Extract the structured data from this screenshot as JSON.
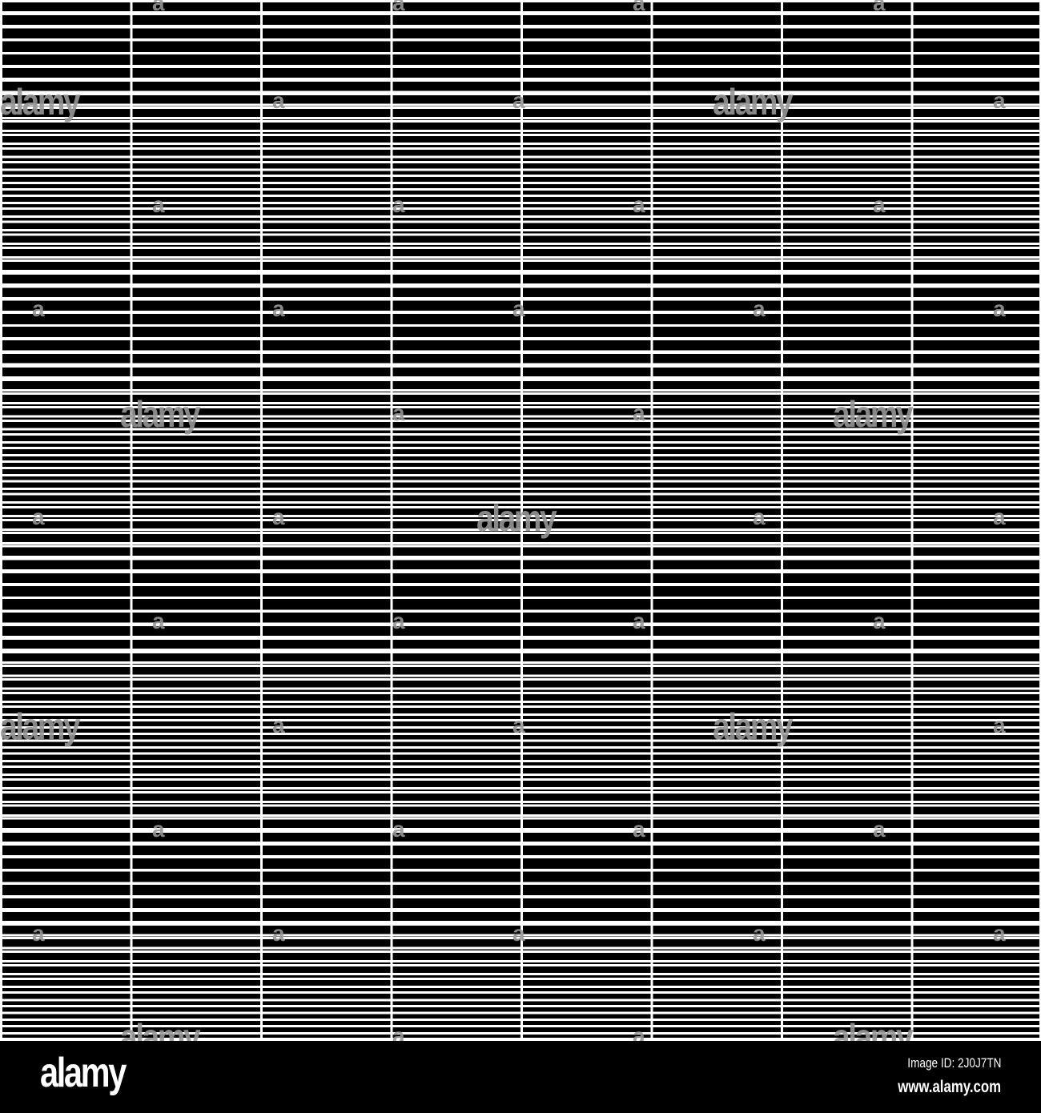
{
  "pattern": {
    "description_colors": {
      "background": "#000000",
      "lines": "#ffffff",
      "watermark": "#969696"
    },
    "columns": 8
  },
  "watermark": {
    "text": "alamy",
    "short": "a"
  },
  "footer": {
    "logo": "alamy",
    "image_id": "Image ID: 2J0J7TN",
    "website": "www.alamy.com"
  }
}
